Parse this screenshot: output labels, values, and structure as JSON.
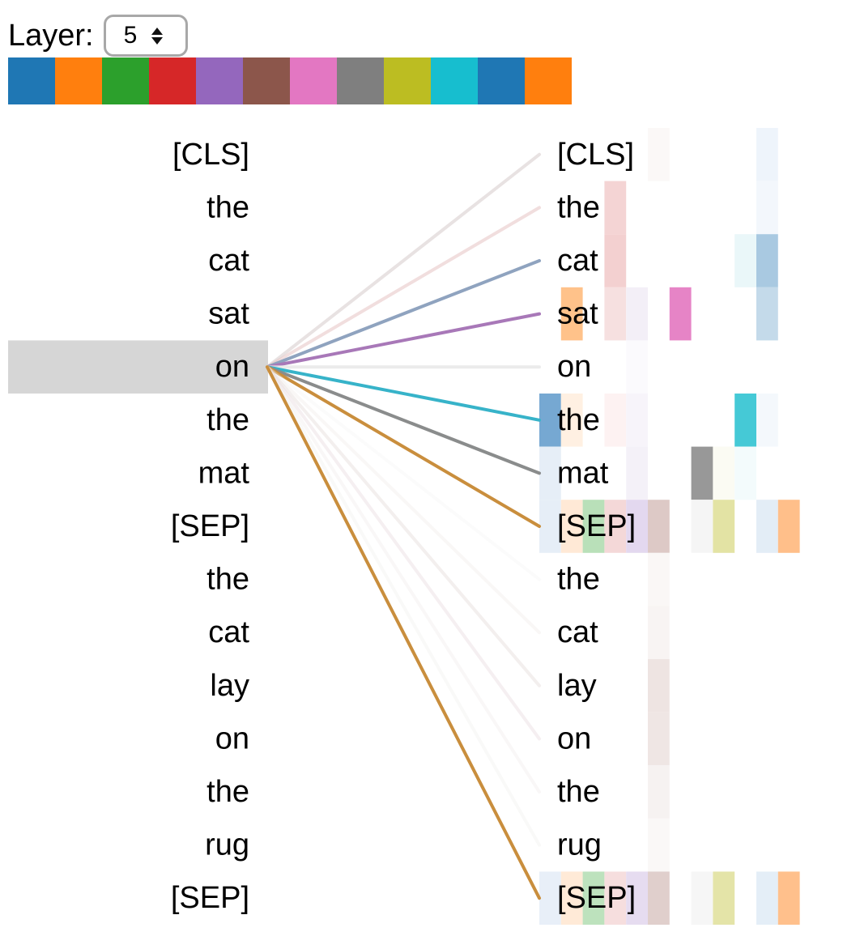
{
  "layer_control": {
    "label": "Layer:",
    "selected": "5"
  },
  "head_colors": [
    "#1f77b4",
    "#ff7f0e",
    "#2ca02c",
    "#d62728",
    "#9467bd",
    "#8c564b",
    "#e377c2",
    "#7f7f7f",
    "#bcbd22",
    "#17becf",
    "#1f77b4",
    "#ff7f0e"
  ],
  "left_tokens": [
    "[CLS]",
    "the",
    "cat",
    "sat",
    "on",
    "the",
    "mat",
    "[SEP]",
    "the",
    "cat",
    "lay",
    "on",
    "the",
    "rug",
    "[SEP]"
  ],
  "right_tokens": [
    "[CLS]",
    "the",
    "cat",
    "sat",
    "on",
    "the",
    "mat",
    "[SEP]",
    "the",
    "cat",
    "lay",
    "on",
    "the",
    "rug",
    "[SEP]"
  ],
  "selected_token_index": 4,
  "attention_lines": [
    {
      "to": 0,
      "color": "#d8cfcf",
      "weight": 0.6
    },
    {
      "to": 1,
      "color": "#e8c8c8",
      "weight": 0.6
    },
    {
      "to": 2,
      "color": "#8fa3bf",
      "weight": 1.0
    },
    {
      "to": 3,
      "color": "#a878b8",
      "weight": 1.0
    },
    {
      "to": 4,
      "color": "#e6e6e6",
      "weight": 0.8
    },
    {
      "to": 5,
      "color": "#37b3c9",
      "weight": 1.0
    },
    {
      "to": 6,
      "color": "#8a8c8c",
      "weight": 1.0
    },
    {
      "to": 7,
      "color": "#c98e3d",
      "weight": 1.0
    },
    {
      "to": 8,
      "color": "#f3f3f1",
      "weight": 0.3
    },
    {
      "to": 9,
      "color": "#efeae8",
      "weight": 0.4
    },
    {
      "to": 10,
      "color": "#e7dfdd",
      "weight": 0.5
    },
    {
      "to": 11,
      "color": "#ebdfe4",
      "weight": 0.5
    },
    {
      "to": 12,
      "color": "#efebea",
      "weight": 0.4
    },
    {
      "to": 13,
      "color": "#f1efee",
      "weight": 0.4
    },
    {
      "to": 14,
      "color": "#c98e3d",
      "weight": 1.0
    }
  ],
  "attention_cells": [
    {
      "row": 0,
      "head": 5,
      "color": "#fbf8f7"
    },
    {
      "row": 0,
      "head": 10,
      "color": "#eef4fb"
    },
    {
      "row": 1,
      "head": 3,
      "color": "#f4d4d4"
    },
    {
      "row": 1,
      "head": 10,
      "color": "#f3f7fc"
    },
    {
      "row": 2,
      "head": 3,
      "color": "#f3d0d0"
    },
    {
      "row": 2,
      "head": 9,
      "color": "#eaf7f9"
    },
    {
      "row": 2,
      "head": 10,
      "color": "#a9c9e1"
    },
    {
      "row": 3,
      "head": 1,
      "color": "#ffc28a"
    },
    {
      "row": 3,
      "head": 3,
      "color": "#f6e0e0"
    },
    {
      "row": 3,
      "head": 4,
      "color": "#f3eff7"
    },
    {
      "row": 3,
      "head": 6,
      "color": "#e684c6"
    },
    {
      "row": 3,
      "head": 10,
      "color": "#c4daea"
    },
    {
      "row": 4,
      "head": 4,
      "color": "#fbfafd"
    },
    {
      "row": 5,
      "head": 0,
      "color": "#76a8d2"
    },
    {
      "row": 5,
      "head": 1,
      "color": "#fff0e2"
    },
    {
      "row": 5,
      "head": 3,
      "color": "#fdf2f2"
    },
    {
      "row": 5,
      "head": 4,
      "color": "#f7f4fa"
    },
    {
      "row": 5,
      "head": 9,
      "color": "#45c9d6"
    },
    {
      "row": 5,
      "head": 10,
      "color": "#f4f8fc"
    },
    {
      "row": 6,
      "head": 0,
      "color": "#e6eef7"
    },
    {
      "row": 6,
      "head": 4,
      "color": "#f4f1f8"
    },
    {
      "row": 6,
      "head": 7,
      "color": "#989898"
    },
    {
      "row": 6,
      "head": 8,
      "color": "#fbfbf3"
    },
    {
      "row": 6,
      "head": 9,
      "color": "#f3fbfc"
    },
    {
      "row": 7,
      "head": 0,
      "color": "#e6eef7"
    },
    {
      "row": 7,
      "head": 1,
      "color": "#ffe9d6"
    },
    {
      "row": 7,
      "head": 2,
      "color": "#b9e0b9"
    },
    {
      "row": 7,
      "head": 3,
      "color": "#f4d8d8"
    },
    {
      "row": 7,
      "head": 4,
      "color": "#e3d8ef"
    },
    {
      "row": 7,
      "head": 5,
      "color": "#ddc9c6"
    },
    {
      "row": 7,
      "head": 7,
      "color": "#f5f5f5"
    },
    {
      "row": 7,
      "head": 8,
      "color": "#e3e3a4"
    },
    {
      "row": 7,
      "head": 10,
      "color": "#e3edf6"
    },
    {
      "row": 7,
      "head": 11,
      "color": "#ffbf8a"
    },
    {
      "row": 8,
      "head": 5,
      "color": "#faf7f6"
    },
    {
      "row": 9,
      "head": 5,
      "color": "#f8f4f3"
    },
    {
      "row": 10,
      "head": 5,
      "color": "#eee4e2"
    },
    {
      "row": 11,
      "head": 5,
      "color": "#efe6e4"
    },
    {
      "row": 12,
      "head": 5,
      "color": "#f6f2f1"
    },
    {
      "row": 13,
      "head": 5,
      "color": "#faf8f7"
    },
    {
      "row": 14,
      "head": 0,
      "color": "#e8eff8"
    },
    {
      "row": 14,
      "head": 1,
      "color": "#ffead7"
    },
    {
      "row": 14,
      "head": 2,
      "color": "#bde2bd"
    },
    {
      "row": 14,
      "head": 3,
      "color": "#f6dede"
    },
    {
      "row": 14,
      "head": 4,
      "color": "#e6dcf0"
    },
    {
      "row": 14,
      "head": 5,
      "color": "#e0cfcc"
    },
    {
      "row": 14,
      "head": 7,
      "color": "#f6f6f6"
    },
    {
      "row": 14,
      "head": 8,
      "color": "#e4e4a8"
    },
    {
      "row": 14,
      "head": 10,
      "color": "#e4eef7"
    },
    {
      "row": 14,
      "head": 11,
      "color": "#ffc08c"
    }
  ]
}
